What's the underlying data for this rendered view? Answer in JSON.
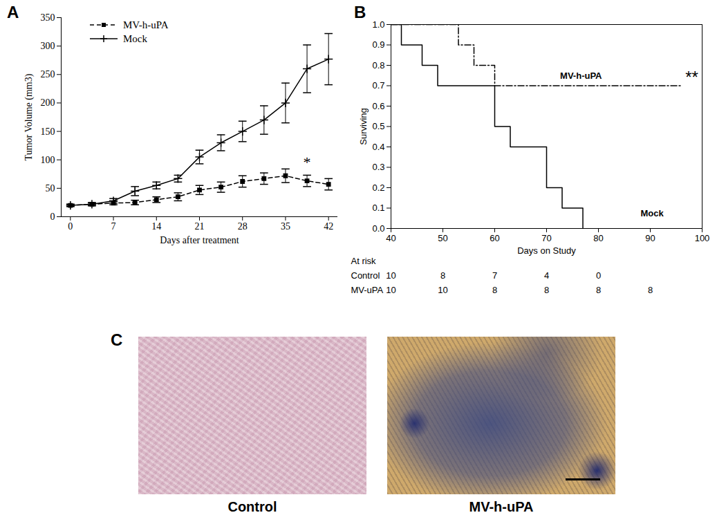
{
  "chart_data": [
    {
      "panel": "A",
      "type": "line",
      "x_label": "Days after treatment",
      "y_label": "Tumor Volume (mm3)",
      "x": [
        0,
        3.5,
        7,
        10.5,
        14,
        17.5,
        21,
        24.5,
        28,
        31.5,
        35,
        38.5,
        42
      ],
      "xlim": [
        -1.5,
        43.5
      ],
      "xticks": [
        0,
        7,
        14,
        21,
        28,
        35,
        42
      ],
      "ylim": [
        0,
        350
      ],
      "yticks": [
        0,
        50,
        100,
        150,
        200,
        250,
        300,
        350
      ],
      "legend": "top-left",
      "series": [
        {
          "name": "MV-h-uPA",
          "color": "#000000",
          "line_style": "dashed",
          "marker": "square",
          "values": [
            20,
            22,
            24,
            25,
            30,
            35,
            47,
            52,
            62,
            67,
            72,
            63,
            57
          ],
          "errors": [
            2,
            2,
            3,
            4,
            5,
            7,
            8,
            9,
            10,
            10,
            12,
            10,
            10
          ]
        },
        {
          "name": "Mock",
          "color": "#000000",
          "line_style": "solid",
          "marker": "plus",
          "values": [
            20,
            22,
            28,
            45,
            55,
            67,
            105,
            130,
            150,
            170,
            200,
            260,
            277
          ],
          "errors": [
            2,
            3,
            4,
            8,
            6,
            6,
            12,
            14,
            18,
            25,
            35,
            42,
            45
          ]
        }
      ],
      "annotations": [
        {
          "text": "*",
          "x": 38.5,
          "y": 95
        }
      ]
    },
    {
      "panel": "B",
      "type": "step",
      "x_label": "Days on Study",
      "y_label": "Surviving",
      "xlim": [
        40,
        100
      ],
      "xticks": [
        40,
        50,
        60,
        70,
        80,
        90,
        100
      ],
      "ylim": [
        0,
        1
      ],
      "yticks": [
        {
          "value": 0,
          "label": "0.0"
        },
        0.1,
        0.2,
        0.3,
        0.4,
        0.5,
        0.6,
        0.7,
        0.8,
        0.9,
        {
          "value": 1,
          "label": "1.0"
        }
      ],
      "series": [
        {
          "name": "MV-h-uPA",
          "color": "#000000",
          "line_style": "dashdot",
          "x": [
            40,
            53,
            56,
            60,
            96
          ],
          "values": [
            1,
            0.9,
            0.8,
            0.7,
            0.7
          ]
        },
        {
          "name": "Mock",
          "color": "#000000",
          "line_style": "solid",
          "x": [
            40,
            42,
            46,
            49,
            60,
            63,
            70,
            73,
            77
          ],
          "values": [
            1,
            0.9,
            0.8,
            0.7,
            0.5,
            0.4,
            0.2,
            0.1,
            0
          ]
        }
      ],
      "annotations": [
        {
          "text": "**",
          "x": 98,
          "y": 0.74
        }
      ],
      "at_risk": {
        "title": "At risk",
        "x": [
          40,
          50,
          60,
          70,
          80,
          90
        ],
        "rows": [
          {
            "name": "Control",
            "values": [
              10,
              8,
              7,
              4,
              0,
              null
            ]
          },
          {
            "name": "MV-uPA",
            "values": [
              10,
              10,
              8,
              8,
              8,
              8
            ]
          }
        ]
      }
    }
  ],
  "panel_c": {
    "panel": "C",
    "images": [
      {
        "caption": "Control"
      },
      {
        "caption": "MV-h-uPA"
      }
    ]
  }
}
